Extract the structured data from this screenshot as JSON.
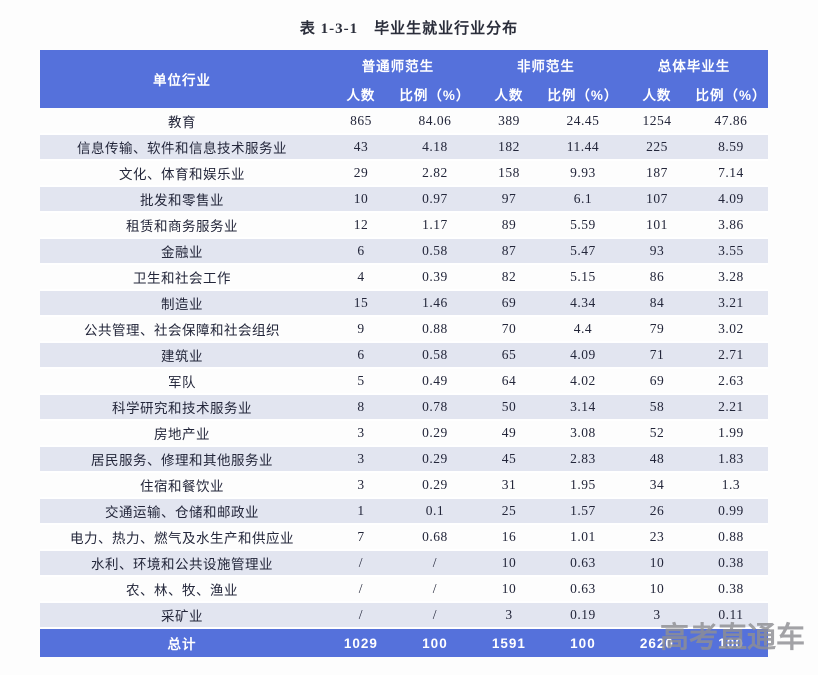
{
  "title": "表 1-3-1　毕业生就业行业分布",
  "watermark": "高考直通车",
  "colors": {
    "header_blue": "#5571db",
    "stripe_lavender": "#e2e5f0",
    "total_row_blue": "#5571db",
    "watermark_gray": "#8f8f93"
  },
  "table": {
    "industry_header": "单位行业",
    "groups": [
      {
        "label": "普通师范生"
      },
      {
        "label": "非师范生"
      },
      {
        "label": "总体毕业生"
      }
    ],
    "subheaders": [
      "人数",
      "比例（%）"
    ],
    "rows": [
      [
        "教育",
        "865",
        "84.06",
        "389",
        "24.45",
        "1254",
        "47.86"
      ],
      [
        "信息传输、软件和信息技术服务业",
        "43",
        "4.18",
        "182",
        "11.44",
        "225",
        "8.59"
      ],
      [
        "文化、体育和娱乐业",
        "29",
        "2.82",
        "158",
        "9.93",
        "187",
        "7.14"
      ],
      [
        "批发和零售业",
        "10",
        "0.97",
        "97",
        "6.1",
        "107",
        "4.09"
      ],
      [
        "租赁和商务服务业",
        "12",
        "1.17",
        "89",
        "5.59",
        "101",
        "3.86"
      ],
      [
        "金融业",
        "6",
        "0.58",
        "87",
        "5.47",
        "93",
        "3.55"
      ],
      [
        "卫生和社会工作",
        "4",
        "0.39",
        "82",
        "5.15",
        "86",
        "3.28"
      ],
      [
        "制造业",
        "15",
        "1.46",
        "69",
        "4.34",
        "84",
        "3.21"
      ],
      [
        "公共管理、社会保障和社会组织",
        "9",
        "0.88",
        "70",
        "4.4",
        "79",
        "3.02"
      ],
      [
        "建筑业",
        "6",
        "0.58",
        "65",
        "4.09",
        "71",
        "2.71"
      ],
      [
        "军队",
        "5",
        "0.49",
        "64",
        "4.02",
        "69",
        "2.63"
      ],
      [
        "科学研究和技术服务业",
        "8",
        "0.78",
        "50",
        "3.14",
        "58",
        "2.21"
      ],
      [
        "房地产业",
        "3",
        "0.29",
        "49",
        "3.08",
        "52",
        "1.99"
      ],
      [
        "居民服务、修理和其他服务业",
        "3",
        "0.29",
        "45",
        "2.83",
        "48",
        "1.83"
      ],
      [
        "住宿和餐饮业",
        "3",
        "0.29",
        "31",
        "1.95",
        "34",
        "1.3"
      ],
      [
        "交通运输、仓储和邮政业",
        "1",
        "0.1",
        "25",
        "1.57",
        "26",
        "0.99"
      ],
      [
        "电力、热力、燃气及水生产和供应业",
        "7",
        "0.68",
        "16",
        "1.01",
        "23",
        "0.88"
      ],
      [
        "水利、环境和公共设施管理业",
        "/",
        "/",
        "10",
        "0.63",
        "10",
        "0.38"
      ],
      [
        "农、林、牧、渔业",
        "/",
        "/",
        "10",
        "0.63",
        "10",
        "0.38"
      ],
      [
        "采矿业",
        "/",
        "/",
        "3",
        "0.19",
        "3",
        "0.11"
      ]
    ],
    "total": [
      "总计",
      "1029",
      "100",
      "1591",
      "100",
      "2620",
      "100"
    ]
  }
}
